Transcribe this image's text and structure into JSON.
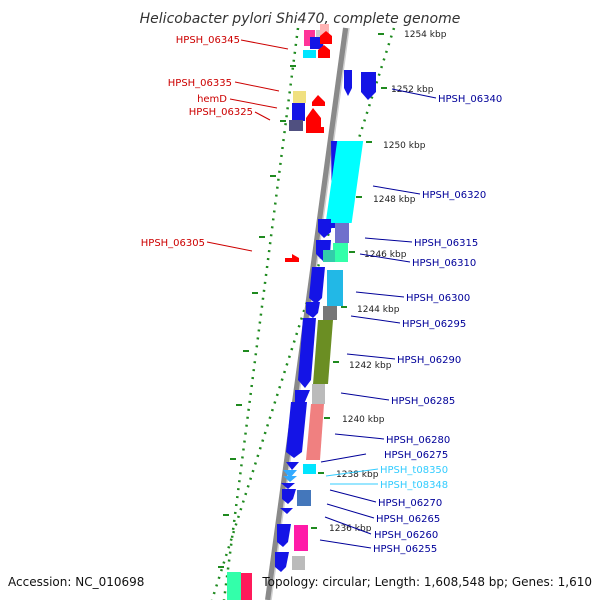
{
  "title": "Helicobacter pylori Shi470, complete genome",
  "footer": {
    "accession": "Accession: NC_010698",
    "summary": "Topology: circular; Length: 1,608,548 bp; Genes: 1,610"
  },
  "colors": {
    "backbone": "#8a8a8a",
    "ruler_ticks": "#1f8a1f",
    "forward_gene": "#1414e6",
    "reverse_gene": "#ff0000",
    "rna_gene": "#00e5ff",
    "left_label": "#cc0000",
    "right_label": "#000099",
    "trna_label": "#33ccff"
  },
  "kbp_markers": [
    "1254 kbp",
    "1252 kbp",
    "1250 kbp",
    "1248 kbp",
    "1246 kbp",
    "1244 kbp",
    "1242 kbp",
    "1240 kbp",
    "1238 kbp",
    "1236 kbp"
  ],
  "left_labels": [
    "HPSH_06345",
    "HPSH_06335",
    "hemD",
    "HPSH_06325",
    "HPSH_06305"
  ],
  "right_labels": [
    "HPSH_06340",
    "HPSH_06320",
    "HPSH_06315",
    "HPSH_06310",
    "HPSH_06300",
    "HPSH_06295",
    "HPSH_06290",
    "HPSH_06285",
    "HPSH_06280",
    "HPSH_06275",
    "HPSH_t08350",
    "HPSH_t08348",
    "HPSH_06270",
    "HPSH_06265",
    "HPSH_06260",
    "HPSH_06255"
  ]
}
